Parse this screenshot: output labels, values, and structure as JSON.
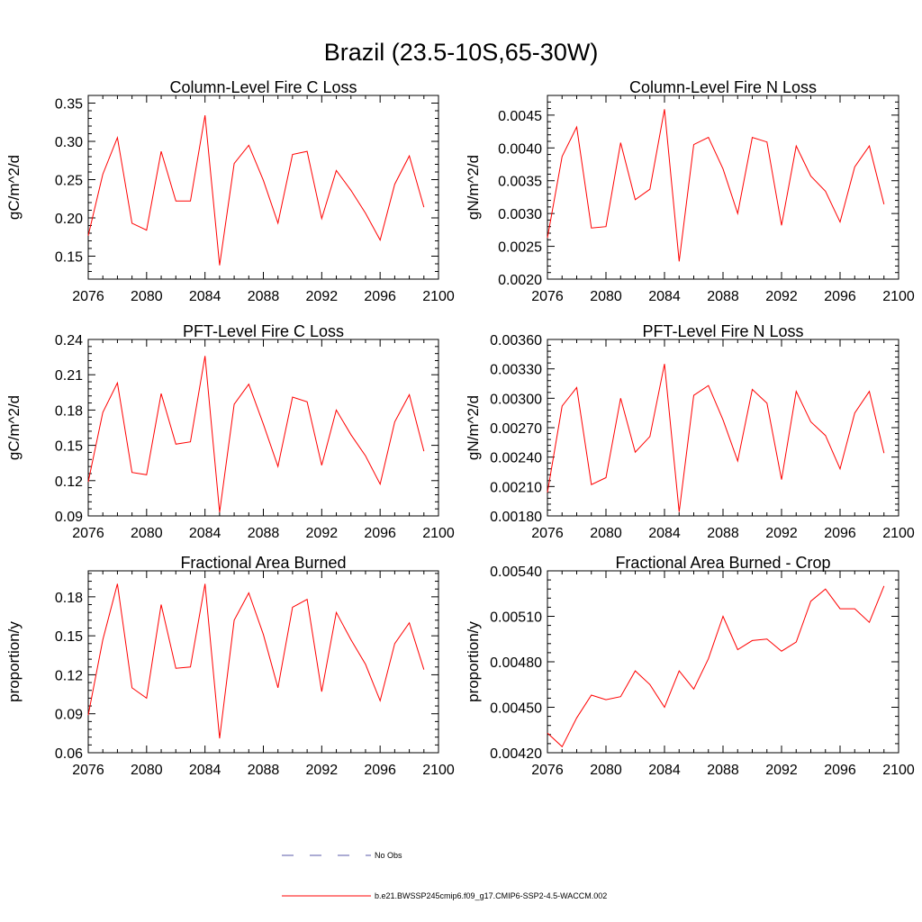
{
  "figure": {
    "title": "Brazil (23.5-10S,65-30W)",
    "line_color": "#ff0000",
    "x_ticks": [
      "2076",
      "2080",
      "2084",
      "2088",
      "2092",
      "2096",
      "2100"
    ]
  },
  "chart_data": [
    {
      "type": "line",
      "title": "Column-Level Fire C Loss",
      "xlabel": "",
      "ylabel": "gC/m^2/d",
      "xlim": [
        2076,
        2100
      ],
      "ylim": [
        0.12,
        0.36
      ],
      "yticks": [
        0.15,
        0.2,
        0.25,
        0.3,
        0.35
      ],
      "yticklabels": [
        "0.15",
        "0.20",
        "0.25",
        "0.30",
        "0.35"
      ],
      "x": [
        2076,
        2077,
        2078,
        2079,
        2080,
        2081,
        2082,
        2083,
        2084,
        2085,
        2086,
        2087,
        2088,
        2089,
        2090,
        2091,
        2092,
        2093,
        2094,
        2095,
        2096,
        2097,
        2098,
        2099
      ],
      "series": [
        {
          "name": "b.e21.BWSSP245cmip6.f09_g17.CMIP6-SSP2-4.5-WACCM.002",
          "values": [
            0.177,
            0.257,
            0.305,
            0.193,
            0.184,
            0.287,
            0.222,
            0.222,
            0.334,
            0.138,
            0.271,
            0.295,
            0.249,
            0.193,
            0.283,
            0.287,
            0.199,
            0.262,
            0.236,
            0.206,
            0.171,
            0.244,
            0.281,
            0.214
          ]
        }
      ]
    },
    {
      "type": "line",
      "title": "Column-Level Fire N Loss",
      "xlabel": "",
      "ylabel": "gN/m^2/d",
      "xlim": [
        2076,
        2100
      ],
      "ylim": [
        0.002,
        0.0048
      ],
      "yticks": [
        0.002,
        0.0025,
        0.003,
        0.0035,
        0.004,
        0.0045
      ],
      "yticklabels": [
        "0.0020",
        "0.0025",
        "0.0030",
        "0.0035",
        "0.0040",
        "0.0045"
      ],
      "x": [
        2076,
        2077,
        2078,
        2079,
        2080,
        2081,
        2082,
        2083,
        2084,
        2085,
        2086,
        2087,
        2088,
        2089,
        2090,
        2091,
        2092,
        2093,
        2094,
        2095,
        2096,
        2097,
        2098,
        2099
      ],
      "series": [
        {
          "name": "b.e21.BWSSP245cmip6.f09_g17.CMIP6-SSP2-4.5-WACCM.002",
          "values": [
            0.00263,
            0.00387,
            0.00432,
            0.00278,
            0.0028,
            0.00408,
            0.00321,
            0.00337,
            0.00459,
            0.00227,
            0.00405,
            0.00416,
            0.00368,
            0.003,
            0.00416,
            0.00409,
            0.00282,
            0.00403,
            0.00357,
            0.00334,
            0.00287,
            0.00371,
            0.00403,
            0.00314
          ]
        }
      ]
    },
    {
      "type": "line",
      "title": "PFT-Level Fire C Loss",
      "xlabel": "",
      "ylabel": "gC/m^2/d",
      "xlim": [
        2076,
        2100
      ],
      "ylim": [
        0.09,
        0.24
      ],
      "yticks": [
        0.09,
        0.12,
        0.15,
        0.18,
        0.21,
        0.24
      ],
      "yticklabels": [
        "0.09",
        "0.12",
        "0.15",
        "0.18",
        "0.21",
        "0.24"
      ],
      "x": [
        2076,
        2077,
        2078,
        2079,
        2080,
        2081,
        2082,
        2083,
        2084,
        2085,
        2086,
        2087,
        2088,
        2089,
        2090,
        2091,
        2092,
        2093,
        2094,
        2095,
        2096,
        2097,
        2098,
        2099
      ],
      "series": [
        {
          "name": "b.e21.BWSSP245cmip6.f09_g17.CMIP6-SSP2-4.5-WACCM.002",
          "values": [
            0.119,
            0.178,
            0.203,
            0.127,
            0.125,
            0.194,
            0.151,
            0.153,
            0.226,
            0.093,
            0.185,
            0.202,
            0.168,
            0.132,
            0.191,
            0.187,
            0.133,
            0.18,
            0.159,
            0.141,
            0.117,
            0.17,
            0.193,
            0.145
          ]
        }
      ]
    },
    {
      "type": "line",
      "title": "PFT-Level Fire N Loss",
      "xlabel": "",
      "ylabel": "gN/m^2/d",
      "xlim": [
        2076,
        2100
      ],
      "ylim": [
        0.0018,
        0.0036
      ],
      "yticks": [
        0.0018,
        0.0021,
        0.0024,
        0.0027,
        0.003,
        0.0033,
        0.0036
      ],
      "yticklabels": [
        "0.00180",
        "0.00210",
        "0.00240",
        "0.00270",
        "0.00300",
        "0.00330",
        "0.00360"
      ],
      "x": [
        2076,
        2077,
        2078,
        2079,
        2080,
        2081,
        2082,
        2083,
        2084,
        2085,
        2086,
        2087,
        2088,
        2089,
        2090,
        2091,
        2092,
        2093,
        2094,
        2095,
        2096,
        2097,
        2098,
        2099
      ],
      "series": [
        {
          "name": "b.e21.BWSSP245cmip6.f09_g17.CMIP6-SSP2-4.5-WACCM.002",
          "values": [
            0.00204,
            0.00292,
            0.00311,
            0.00212,
            0.00219,
            0.003,
            0.00245,
            0.00261,
            0.00335,
            0.00184,
            0.00303,
            0.00313,
            0.00278,
            0.00236,
            0.00309,
            0.00295,
            0.00217,
            0.00307,
            0.00276,
            0.00262,
            0.00228,
            0.00285,
            0.00307,
            0.00244
          ]
        }
      ]
    },
    {
      "type": "line",
      "title": "Fractional Area Burned",
      "xlabel": "",
      "ylabel": "proportion/y",
      "xlim": [
        2076,
        2100
      ],
      "ylim": [
        0.06,
        0.2
      ],
      "yticks": [
        0.06,
        0.09,
        0.12,
        0.15,
        0.18
      ],
      "yticklabels": [
        "0.06",
        "0.09",
        "0.12",
        "0.15",
        "0.18"
      ],
      "x": [
        2076,
        2077,
        2078,
        2079,
        2080,
        2081,
        2082,
        2083,
        2084,
        2085,
        2086,
        2087,
        2088,
        2089,
        2090,
        2091,
        2092,
        2093,
        2094,
        2095,
        2096,
        2097,
        2098,
        2099
      ],
      "series": [
        {
          "name": "b.e21.BWSSP245cmip6.f09_g17.CMIP6-SSP2-4.5-WACCM.002",
          "values": [
            0.089,
            0.147,
            0.19,
            0.11,
            0.102,
            0.174,
            0.125,
            0.126,
            0.19,
            0.071,
            0.162,
            0.183,
            0.151,
            0.11,
            0.172,
            0.178,
            0.107,
            0.168,
            0.147,
            0.128,
            0.1,
            0.144,
            0.16,
            0.124
          ]
        }
      ]
    },
    {
      "type": "line",
      "title": "Fractional Area Burned - Crop",
      "xlabel": "",
      "ylabel": "proportion/y",
      "xlim": [
        2076,
        2100
      ],
      "ylim": [
        0.0042,
        0.0054
      ],
      "yticks": [
        0.0042,
        0.0045,
        0.0048,
        0.0051,
        0.0054
      ],
      "yticklabels": [
        "0.00420",
        "0.00450",
        "0.00480",
        "0.00510",
        "0.00540"
      ],
      "x": [
        2076,
        2077,
        2078,
        2079,
        2080,
        2081,
        2082,
        2083,
        2084,
        2085,
        2086,
        2087,
        2088,
        2089,
        2090,
        2091,
        2092,
        2093,
        2094,
        2095,
        2096,
        2097,
        2098,
        2099
      ],
      "series": [
        {
          "name": "b.e21.BWSSP245cmip6.f09_g17.CMIP6-SSP2-4.5-WACCM.002",
          "values": [
            0.00433,
            0.00424,
            0.00443,
            0.00458,
            0.00455,
            0.00457,
            0.00474,
            0.00465,
            0.0045,
            0.00474,
            0.00462,
            0.00482,
            0.0051,
            0.00488,
            0.00494,
            0.00495,
            0.00487,
            0.00493,
            0.0052,
            0.00528,
            0.00515,
            0.00515,
            0.00506,
            0.0053
          ]
        }
      ]
    }
  ],
  "legend": {
    "items": [
      {
        "label": "No Obs",
        "style": "dashed",
        "color": "#5a5aa8"
      },
      {
        "label": "b.e21.BWSSP245cmip6.f09_g17.CMIP6-SSP2-4.5-WACCM.002",
        "style": "solid",
        "color": "#ff0000"
      }
    ]
  }
}
